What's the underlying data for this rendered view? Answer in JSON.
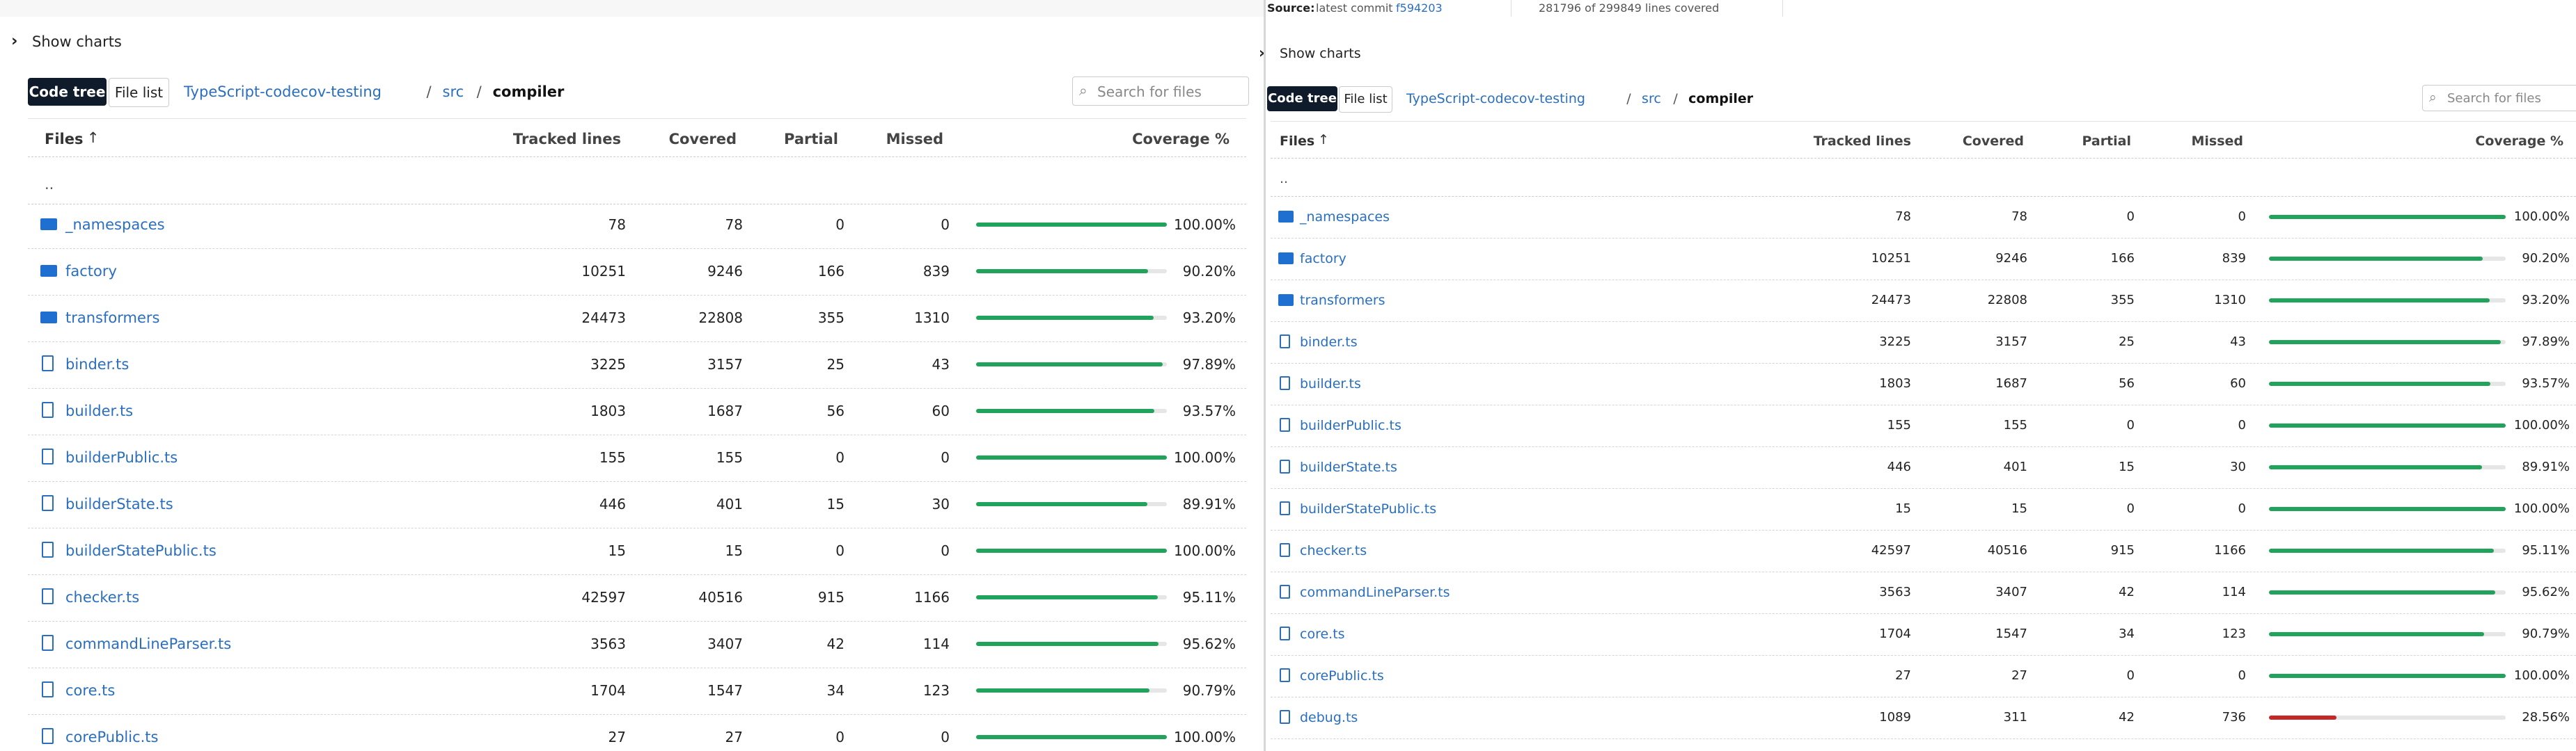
{
  "left": {
    "show_charts": "Show charts",
    "tabs": [
      "Code tree",
      "File list"
    ],
    "breadcrumb": [
      "TypeScript-codecov-testing",
      "src",
      "compiler"
    ],
    "separator": "/",
    "search_placeholder": "Search for files",
    "columns": [
      "Files",
      "Tracked lines",
      "Covered",
      "Partial",
      "Missed",
      "Coverage %"
    ],
    "parent": "..",
    "rows": [
      {
        "name": "_namespaces",
        "kind": "folder",
        "tracked": 78,
        "covered": 78,
        "partial": 0,
        "missed": 0,
        "coverage": "100.00%"
      },
      {
        "name": "factory",
        "kind": "folder",
        "tracked": 10251,
        "covered": 9246,
        "partial": 166,
        "missed": 839,
        "coverage": "90.20%"
      },
      {
        "name": "transformers",
        "kind": "folder",
        "tracked": 24473,
        "covered": 22808,
        "partial": 355,
        "missed": 1310,
        "coverage": "93.20%"
      },
      {
        "name": "binder.ts",
        "kind": "file",
        "tracked": 3225,
        "covered": 3157,
        "partial": 25,
        "missed": 43,
        "coverage": "97.89%"
      },
      {
        "name": "builder.ts",
        "kind": "file",
        "tracked": 1803,
        "covered": 1687,
        "partial": 56,
        "missed": 60,
        "coverage": "93.57%"
      },
      {
        "name": "builderPublic.ts",
        "kind": "file",
        "tracked": 155,
        "covered": 155,
        "partial": 0,
        "missed": 0,
        "coverage": "100.00%"
      },
      {
        "name": "builderState.ts",
        "kind": "file",
        "tracked": 446,
        "covered": 401,
        "partial": 15,
        "missed": 30,
        "coverage": "89.91%"
      },
      {
        "name": "builderStatePublic.ts",
        "kind": "file",
        "tracked": 15,
        "covered": 15,
        "partial": 0,
        "missed": 0,
        "coverage": "100.00%"
      },
      {
        "name": "checker.ts",
        "kind": "file",
        "tracked": 42597,
        "covered": 40516,
        "partial": 915,
        "missed": 1166,
        "coverage": "95.11%"
      },
      {
        "name": "commandLineParser.ts",
        "kind": "file",
        "tracked": 3563,
        "covered": 3407,
        "partial": 42,
        "missed": 114,
        "coverage": "95.62%"
      },
      {
        "name": "core.ts",
        "kind": "file",
        "tracked": 1704,
        "covered": 1547,
        "partial": 34,
        "missed": 123,
        "coverage": "90.79%"
      },
      {
        "name": "corePublic.ts",
        "kind": "file",
        "tracked": 27,
        "covered": 27,
        "partial": 0,
        "missed": 0,
        "coverage": "100.00%"
      }
    ]
  },
  "right": {
    "source_label": "Source:",
    "source_text": "latest commit",
    "commit": "f594203",
    "lines_covered": "281796 of 299849 lines covered",
    "show_charts": "Show charts",
    "tabs": [
      "Code tree",
      "File list"
    ],
    "breadcrumb": [
      "TypeScript-codecov-testing",
      "src",
      "compiler"
    ],
    "separator": "/",
    "search_placeholder": "Search for files",
    "columns": [
      "Files",
      "Tracked lines",
      "Covered",
      "Partial",
      "Missed",
      "Coverage %"
    ],
    "parent": "..",
    "rows": [
      {
        "name": "_namespaces",
        "kind": "folder",
        "tracked": 78,
        "covered": 78,
        "partial": 0,
        "missed": 0,
        "coverage": "100.00%"
      },
      {
        "name": "factory",
        "kind": "folder",
        "tracked": 10251,
        "covered": 9246,
        "partial": 166,
        "missed": 839,
        "coverage": "90.20%"
      },
      {
        "name": "transformers",
        "kind": "folder",
        "tracked": 24473,
        "covered": 22808,
        "partial": 355,
        "missed": 1310,
        "coverage": "93.20%"
      },
      {
        "name": "binder.ts",
        "kind": "file",
        "tracked": 3225,
        "covered": 3157,
        "partial": 25,
        "missed": 43,
        "coverage": "97.89%"
      },
      {
        "name": "builder.ts",
        "kind": "file",
        "tracked": 1803,
        "covered": 1687,
        "partial": 56,
        "missed": 60,
        "coverage": "93.57%"
      },
      {
        "name": "builderPublic.ts",
        "kind": "file",
        "tracked": 155,
        "covered": 155,
        "partial": 0,
        "missed": 0,
        "coverage": "100.00%"
      },
      {
        "name": "builderState.ts",
        "kind": "file",
        "tracked": 446,
        "covered": 401,
        "partial": 15,
        "missed": 30,
        "coverage": "89.91%"
      },
      {
        "name": "builderStatePublic.ts",
        "kind": "file",
        "tracked": 15,
        "covered": 15,
        "partial": 0,
        "missed": 0,
        "coverage": "100.00%"
      },
      {
        "name": "checker.ts",
        "kind": "file",
        "tracked": 42597,
        "covered": 40516,
        "partial": 915,
        "missed": 1166,
        "coverage": "95.11%"
      },
      {
        "name": "commandLineParser.ts",
        "kind": "file",
        "tracked": 3563,
        "covered": 3407,
        "partial": 42,
        "missed": 114,
        "coverage": "95.62%"
      },
      {
        "name": "core.ts",
        "kind": "file",
        "tracked": 1704,
        "covered": 1547,
        "partial": 34,
        "missed": 123,
        "coverage": "90.79%"
      },
      {
        "name": "corePublic.ts",
        "kind": "file",
        "tracked": 27,
        "covered": 27,
        "partial": 0,
        "missed": 0,
        "coverage": "100.00%"
      },
      {
        "name": "debug.ts",
        "kind": "file",
        "tracked": 1089,
        "covered": 311,
        "partial": 42,
        "missed": 736,
        "coverage": "28.56%"
      }
    ]
  }
}
